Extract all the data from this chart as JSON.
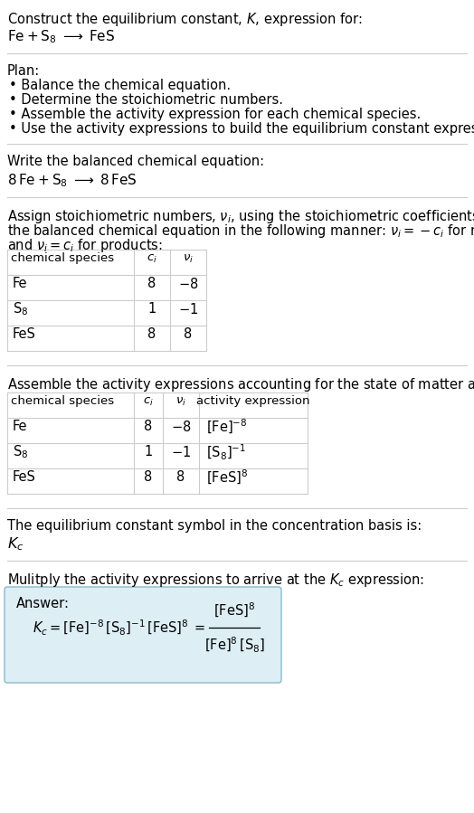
{
  "title_line1": "Construct the equilibrium constant, $K$, expression for:",
  "title_line2": "$\\mathrm{Fe} + \\mathrm{S_8} \\;\\longrightarrow\\; \\mathrm{FeS}$",
  "plan_header": "Plan:",
  "plan_bullets": [
    "• Balance the chemical equation.",
    "• Determine the stoichiometric numbers.",
    "• Assemble the activity expression for each chemical species.",
    "• Use the activity expressions to build the equilibrium constant expression."
  ],
  "balanced_header": "Write the balanced chemical equation:",
  "balanced_eq": "$8\\,\\mathrm{Fe} + \\mathrm{S_8} \\;\\longrightarrow\\; 8\\,\\mathrm{FeS}$",
  "stoich_intro1": "Assign stoichiometric numbers, $\\nu_i$, using the stoichiometric coefficients, $c_i$, from",
  "stoich_intro2": "the balanced chemical equation in the following manner: $\\nu_i = -c_i$ for reactants",
  "stoich_intro3": "and $\\nu_i = c_i$ for products:",
  "table1_headers": [
    "chemical species",
    "$c_i$",
    "$\\nu_i$"
  ],
  "table1_rows": [
    [
      "Fe",
      "8",
      "$-8$"
    ],
    [
      "$\\mathrm{S_8}$",
      "1",
      "$-1$"
    ],
    [
      "FeS",
      "8",
      "8"
    ]
  ],
  "activity_intro": "Assemble the activity expressions accounting for the state of matter and $\\nu_i$:",
  "table2_headers": [
    "chemical species",
    "$c_i$",
    "$\\nu_i$",
    "activity expression"
  ],
  "table2_rows": [
    [
      "Fe",
      "8",
      "$-8$",
      "$[\\mathrm{Fe}]^{-8}$"
    ],
    [
      "$\\mathrm{S_8}$",
      "1",
      "$-1$",
      "$[\\mathrm{S_8}]^{-1}$"
    ],
    [
      "FeS",
      "8",
      "8",
      "$[\\mathrm{FeS}]^{8}$"
    ]
  ],
  "kc_intro": "The equilibrium constant symbol in the concentration basis is:",
  "kc_symbol": "$K_c$",
  "multiply_intro": "Mulitply the activity expressions to arrive at the $K_c$ expression:",
  "answer_label": "Answer:",
  "bg_color": "#ffffff",
  "answer_bg": "#ddeef5",
  "answer_border": "#88bbcc",
  "fs": 10.5,
  "fs_small": 9.5
}
